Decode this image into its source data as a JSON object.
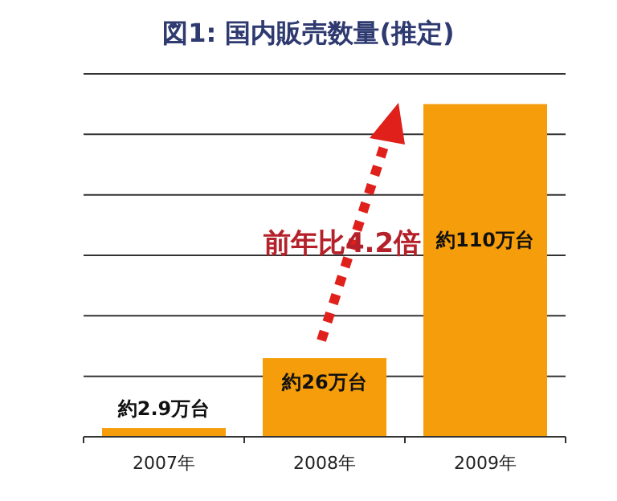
{
  "chart_data": {
    "type": "bar",
    "title": "図1: 国内販売数量(推定)",
    "categories": [
      "2007年",
      "2008年",
      "2009年"
    ],
    "values": [
      2.9,
      26,
      110
    ],
    "value_labels": [
      "約2.9万台",
      "約26万台",
      "約110万台"
    ],
    "color": "#f59d0a",
    "ylim": [
      0,
      120
    ],
    "yticks": [
      {
        "value": 0,
        "label": null
      },
      {
        "value": 20,
        "label": null
      },
      {
        "value": 40,
        "label": null
      },
      {
        "value": 60,
        "label": null
      },
      {
        "value": 80,
        "label": null
      },
      {
        "value": 100,
        "label": null
      },
      {
        "value": 120,
        "label": null
      }
    ],
    "tick_labels": "x",
    "grid": "y",
    "annotations": [
      "前年比4.2倍"
    ]
  }
}
